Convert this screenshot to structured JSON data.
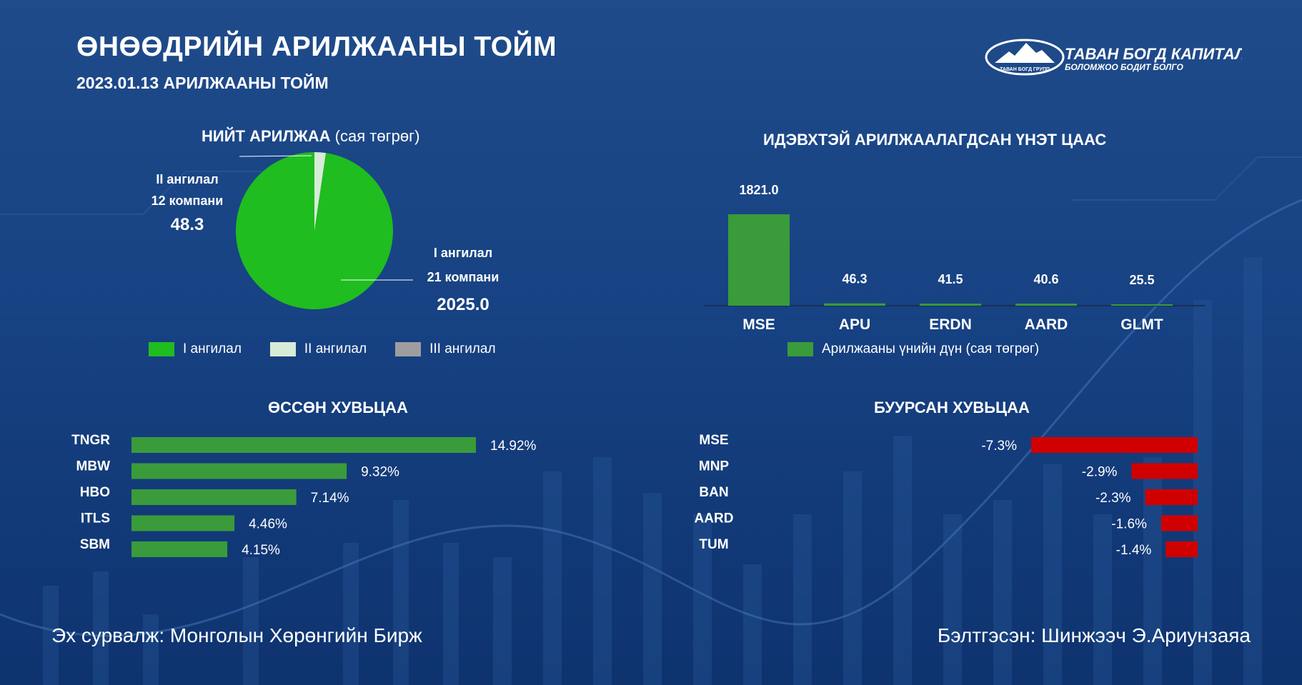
{
  "header": {
    "title": "ӨНӨӨДРИЙН АРИЛЖААНЫ ТОЙМ",
    "subtitle": "2023.01.13 АРИЛЖААНЫ ТОЙМ"
  },
  "logo": {
    "name": "ТАВАН БОГД КАПИТАЛ",
    "tagline": "БОЛОМЖОО БОДИТ БОЛГО",
    "badge": "ТАВАН БОГД ГРУПП"
  },
  "colors": {
    "green": "#3a9b3a",
    "pie_green": "#1fbd1f",
    "pie_light": "#d7ecd7",
    "pie_gray": "#9e9e9e",
    "red": "#d10000"
  },
  "chart_data": [
    {
      "type": "pie",
      "title": "НИЙТ АРИЛЖАА",
      "title_unit": "(сая төгрөг)",
      "slices": [
        {
          "name": "I ангилал",
          "companies_label": "21 компани",
          "value": 2025.0,
          "value_label": "2025.0",
          "color": "#1fbd1f"
        },
        {
          "name": "II ангилал",
          "companies_label": "12 компани",
          "value": 48.3,
          "value_label": "48.3",
          "color": "#d7ecd7"
        },
        {
          "name": "III ангилал",
          "value": 0,
          "color": "#9e9e9e"
        }
      ],
      "legend": [
        "I ангилал",
        "II ангилал",
        "III ангилал"
      ]
    },
    {
      "type": "bar",
      "title": "ИДЭВХТЭЙ АРИЛЖААЛАГДСАН ҮНЭТ ЦААС",
      "categories": [
        "MSE",
        "APU",
        "ERDN",
        "AARD",
        "GLMT"
      ],
      "values": [
        1821.0,
        46.3,
        41.5,
        40.6,
        25.5
      ],
      "value_labels": [
        "1821.0",
        "46.3",
        "41.5",
        "40.6",
        "25.5"
      ],
      "series_name": "Арилжааны үнийн дүн (сая төгрөг)",
      "color": "#3a9b3a",
      "ylim": [
        0,
        1821.0
      ]
    },
    {
      "type": "bar",
      "orientation": "horizontal",
      "title": "ӨССӨН ХУВЬЦАА",
      "categories": [
        "TNGR",
        "MBW",
        "HBO",
        "ITLS",
        "SBM"
      ],
      "values": [
        14.92,
        9.32,
        7.14,
        4.46,
        4.15
      ],
      "value_labels": [
        "14.92%",
        "9.32%",
        "7.14%",
        "4.46%",
        "4.15%"
      ],
      "color": "#3a9b3a"
    },
    {
      "type": "bar",
      "orientation": "horizontal",
      "title": "БУУРСАН ХУВЬЦАА",
      "categories": [
        "MSE",
        "MNP",
        "BAN",
        "AARD",
        "TUM"
      ],
      "values": [
        -7.3,
        -2.9,
        -2.3,
        -1.6,
        -1.4
      ],
      "value_labels": [
        "-7.3%",
        "-2.9%",
        "-2.3%",
        "-1.6%",
        "-1.4%"
      ],
      "color": "#d10000"
    }
  ],
  "footer": {
    "source": "Эх сурвалж: Монголын Хөрөнгийн Бирж",
    "author": "Бэлтгэсэн: Шинжээч Э.Ариунзаяа"
  }
}
